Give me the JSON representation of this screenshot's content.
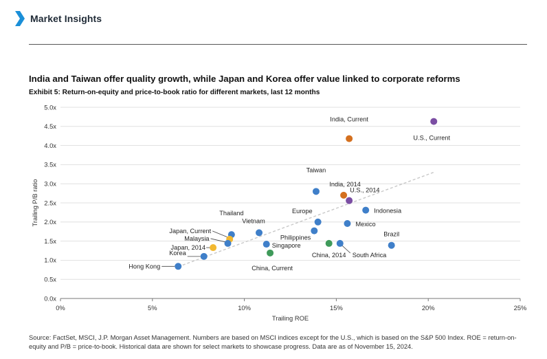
{
  "header": {
    "title": "Market Insights",
    "accent_color": "#1a8fd8",
    "icon": "chevron-right-icon"
  },
  "chart": {
    "title": "India and Taiwan offer quality growth, while Japan and Korea offer value linked to corporate reforms",
    "subtitle": "Exhibit 5: Return-on-equity and price-to-book ratio for different markets, last 12 months"
  },
  "source": "Source: FactSet, MSCI, J.P. Morgan Asset Management. Numbers are based on MSCI indices except for the U.S., which is based on the S&P 500 Index. ROE = return-on-equity and P/B = price-to-book. Historical data are shown for select markets to showcase progress. Data are as of November 15, 2024.",
  "chart_data": {
    "type": "scatter",
    "xlabel": "Trailing ROE",
    "ylabel": "Trailing P/B ratio",
    "xlim": [
      0,
      25
    ],
    "ylim": [
      0,
      5
    ],
    "x_ticks": [
      "0%",
      "5%",
      "10%",
      "15%",
      "20%",
      "25%"
    ],
    "y_ticks": [
      "0.0x",
      "0.5x",
      "1.0x",
      "1.5x",
      "2.0x",
      "2.5x",
      "3.0x",
      "3.5x",
      "4.0x",
      "4.5x",
      "5.0x"
    ],
    "grid": true,
    "trendline": {
      "style": "dashed",
      "color": "#c8c8c8",
      "from": [
        6.4,
        0.83
      ],
      "to": [
        20.3,
        3.3
      ]
    },
    "colors": {
      "blue": "#3f7fc9",
      "orange": "#d4701f",
      "purple": "#7b4ea3",
      "yellow": "#f2b830",
      "green": "#3f9a5a"
    },
    "points": [
      {
        "label": "India, Current",
        "x": 15.7,
        "y": 4.18,
        "color": "orange"
      },
      {
        "label": "U.S., Current",
        "x": 20.3,
        "y": 4.63,
        "color": "purple"
      },
      {
        "label": "Taiwan",
        "x": 13.9,
        "y": 2.8,
        "color": "blue"
      },
      {
        "label": "India, 2014",
        "x": 15.4,
        "y": 2.7,
        "color": "orange"
      },
      {
        "label": "U.S., 2014",
        "x": 15.7,
        "y": 2.56,
        "color": "purple"
      },
      {
        "label": "Indonesia",
        "x": 16.6,
        "y": 2.31,
        "color": "blue"
      },
      {
        "label": "Europe",
        "x": 14.0,
        "y": 2.0,
        "color": "blue"
      },
      {
        "label": "Mexico",
        "x": 15.6,
        "y": 1.96,
        "color": "blue"
      },
      {
        "label": "Philippines",
        "x": 13.8,
        "y": 1.77,
        "color": "blue"
      },
      {
        "label": "Thailand",
        "x": 9.3,
        "y": 1.67,
        "color": "blue"
      },
      {
        "label": "Vietnam",
        "x": 10.8,
        "y": 1.72,
        "color": "blue"
      },
      {
        "label": "Japan, Current",
        "x": 9.2,
        "y": 1.55,
        "color": "yellow"
      },
      {
        "label": "Malaysia",
        "x": 9.1,
        "y": 1.44,
        "color": "blue"
      },
      {
        "label": "Singapore",
        "x": 11.2,
        "y": 1.42,
        "color": "blue"
      },
      {
        "label": "Brazil",
        "x": 18.0,
        "y": 1.39,
        "color": "blue"
      },
      {
        "label": "China, 2014",
        "x": 14.6,
        "y": 1.44,
        "color": "green"
      },
      {
        "label": "South Africa",
        "x": 15.2,
        "y": 1.44,
        "color": "blue"
      },
      {
        "label": "Japan, 2014",
        "x": 8.3,
        "y": 1.33,
        "color": "yellow"
      },
      {
        "label": "China, Current",
        "x": 11.4,
        "y": 1.19,
        "color": "green"
      },
      {
        "label": "Korea",
        "x": 7.8,
        "y": 1.1,
        "color": "blue"
      },
      {
        "label": "Hong Kong",
        "x": 6.4,
        "y": 0.84,
        "color": "blue"
      }
    ]
  }
}
